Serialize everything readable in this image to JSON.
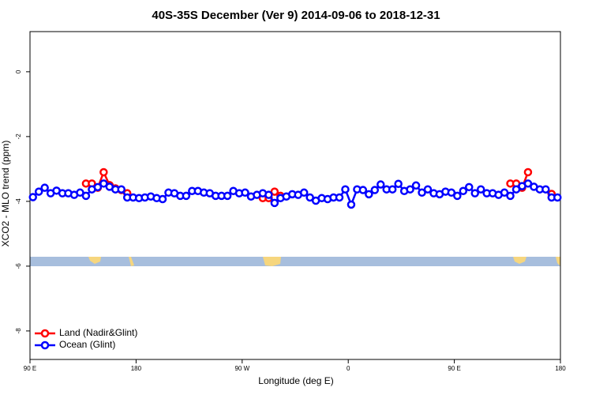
{
  "chart_data": {
    "type": "line",
    "title": "40S-35S December (Ver 9)   2014-09-06 to 2018-12-31",
    "x_label": "Longitude (deg E)",
    "y_label": "XCO2 - MLO trend (ppm)",
    "x": [
      92.5,
      97.5,
      102.5,
      107.5,
      112.5,
      117.5,
      122.5,
      127.5,
      132.5,
      137.5,
      142.5,
      147.5,
      152.5,
      157.5,
      162.5,
      167.5,
      172.5,
      177.5,
      182.5,
      187.5,
      192.5,
      197.5,
      202.5,
      207.5,
      212.5,
      217.5,
      222.5,
      227.5,
      232.5,
      237.5,
      242.5,
      247.5,
      252.5,
      257.5,
      262.5,
      267.5,
      272.5,
      277.5,
      282.5,
      287.5,
      292.5,
      297.5,
      302.5,
      307.5,
      312.5,
      317.5,
      322.5,
      327.5,
      332.5,
      337.5,
      342.5,
      347.5,
      352.5,
      357.5,
      362.5,
      367.5,
      372.5,
      377.5,
      382.5,
      387.5,
      392.5,
      397.5,
      402.5,
      407.5,
      412.5,
      417.5,
      422.5,
      427.5,
      432.5,
      437.5,
      442.5,
      447.5,
      452.5,
      457.5,
      462.5,
      467.5,
      472.5,
      477.5,
      482.5,
      487.5,
      492.5,
      497.5,
      502.5,
      507.5,
      512.5,
      517.5,
      522.5,
      527.5,
      532.5,
      537.5
    ],
    "series": [
      {
        "name": "Land (Nadir&Glint)",
        "color": "#ff0000",
        "values": [
          null,
          null,
          null,
          null,
          null,
          null,
          null,
          null,
          null,
          -3.45,
          -3.45,
          -3.58,
          -3.1,
          -3.5,
          -3.6,
          -3.65,
          -3.75,
          null,
          null,
          null,
          null,
          null,
          null,
          null,
          null,
          null,
          null,
          null,
          null,
          null,
          null,
          null,
          null,
          null,
          null,
          null,
          null,
          null,
          null,
          -3.9,
          -3.9,
          -3.7,
          -3.83,
          null,
          null,
          null,
          null,
          null,
          null,
          null,
          null,
          null,
          null,
          null,
          null,
          null,
          null,
          null,
          null,
          null,
          null,
          null,
          null,
          null,
          null,
          null,
          null,
          null,
          null,
          null,
          null,
          null,
          null,
          null,
          null,
          null,
          null,
          null,
          null,
          null,
          null,
          -3.45,
          -3.45,
          -3.58,
          -3.1,
          null,
          null,
          null,
          -3.77,
          null
        ]
      },
      {
        "name": "Ocean (Glint)",
        "color": "#0000ff",
        "values": [
          -3.87,
          -3.7,
          -3.58,
          -3.75,
          -3.67,
          -3.75,
          -3.75,
          -3.8,
          -3.73,
          -3.83,
          -3.63,
          -3.56,
          -3.45,
          -3.55,
          -3.63,
          -3.63,
          -3.88,
          -3.88,
          -3.9,
          -3.88,
          -3.85,
          -3.9,
          -3.93,
          -3.73,
          -3.75,
          -3.83,
          -3.83,
          -3.68,
          -3.68,
          -3.73,
          -3.75,
          -3.83,
          -3.83,
          -3.83,
          -3.68,
          -3.75,
          -3.73,
          -3.85,
          -3.8,
          -3.75,
          -3.8,
          -4.05,
          -3.9,
          -3.85,
          -3.78,
          -3.8,
          -3.73,
          -3.88,
          -3.98,
          -3.9,
          -3.93,
          -3.88,
          -3.88,
          -3.63,
          -4.1,
          -3.63,
          -3.65,
          -3.78,
          -3.65,
          -3.48,
          -3.63,
          -3.63,
          -3.46,
          -3.68,
          -3.63,
          -3.51,
          -3.73,
          -3.63,
          -3.75,
          -3.78,
          -3.7,
          -3.73,
          -3.83,
          -3.68,
          -3.56,
          -3.75,
          -3.63,
          -3.75,
          -3.75,
          -3.8,
          -3.73,
          -3.83,
          -3.63,
          -3.53,
          -3.45,
          -3.55,
          -3.63,
          -3.63,
          -3.88,
          -3.88
        ]
      }
    ],
    "xlim": [
      90,
      540
    ],
    "xticks": [
      {
        "value": 90,
        "label": "90 E"
      },
      {
        "value": 180,
        "label": "180"
      },
      {
        "value": 270,
        "label": "90 W"
      },
      {
        "value": 360,
        "label": "0"
      },
      {
        "value": 450,
        "label": "90 E"
      },
      {
        "value": 540,
        "label": "180"
      }
    ],
    "ylim": [
      -8.88,
      1.24
    ],
    "yticks": [
      0,
      -2,
      -4,
      -6,
      -8
    ],
    "legend": "bottom-left"
  }
}
